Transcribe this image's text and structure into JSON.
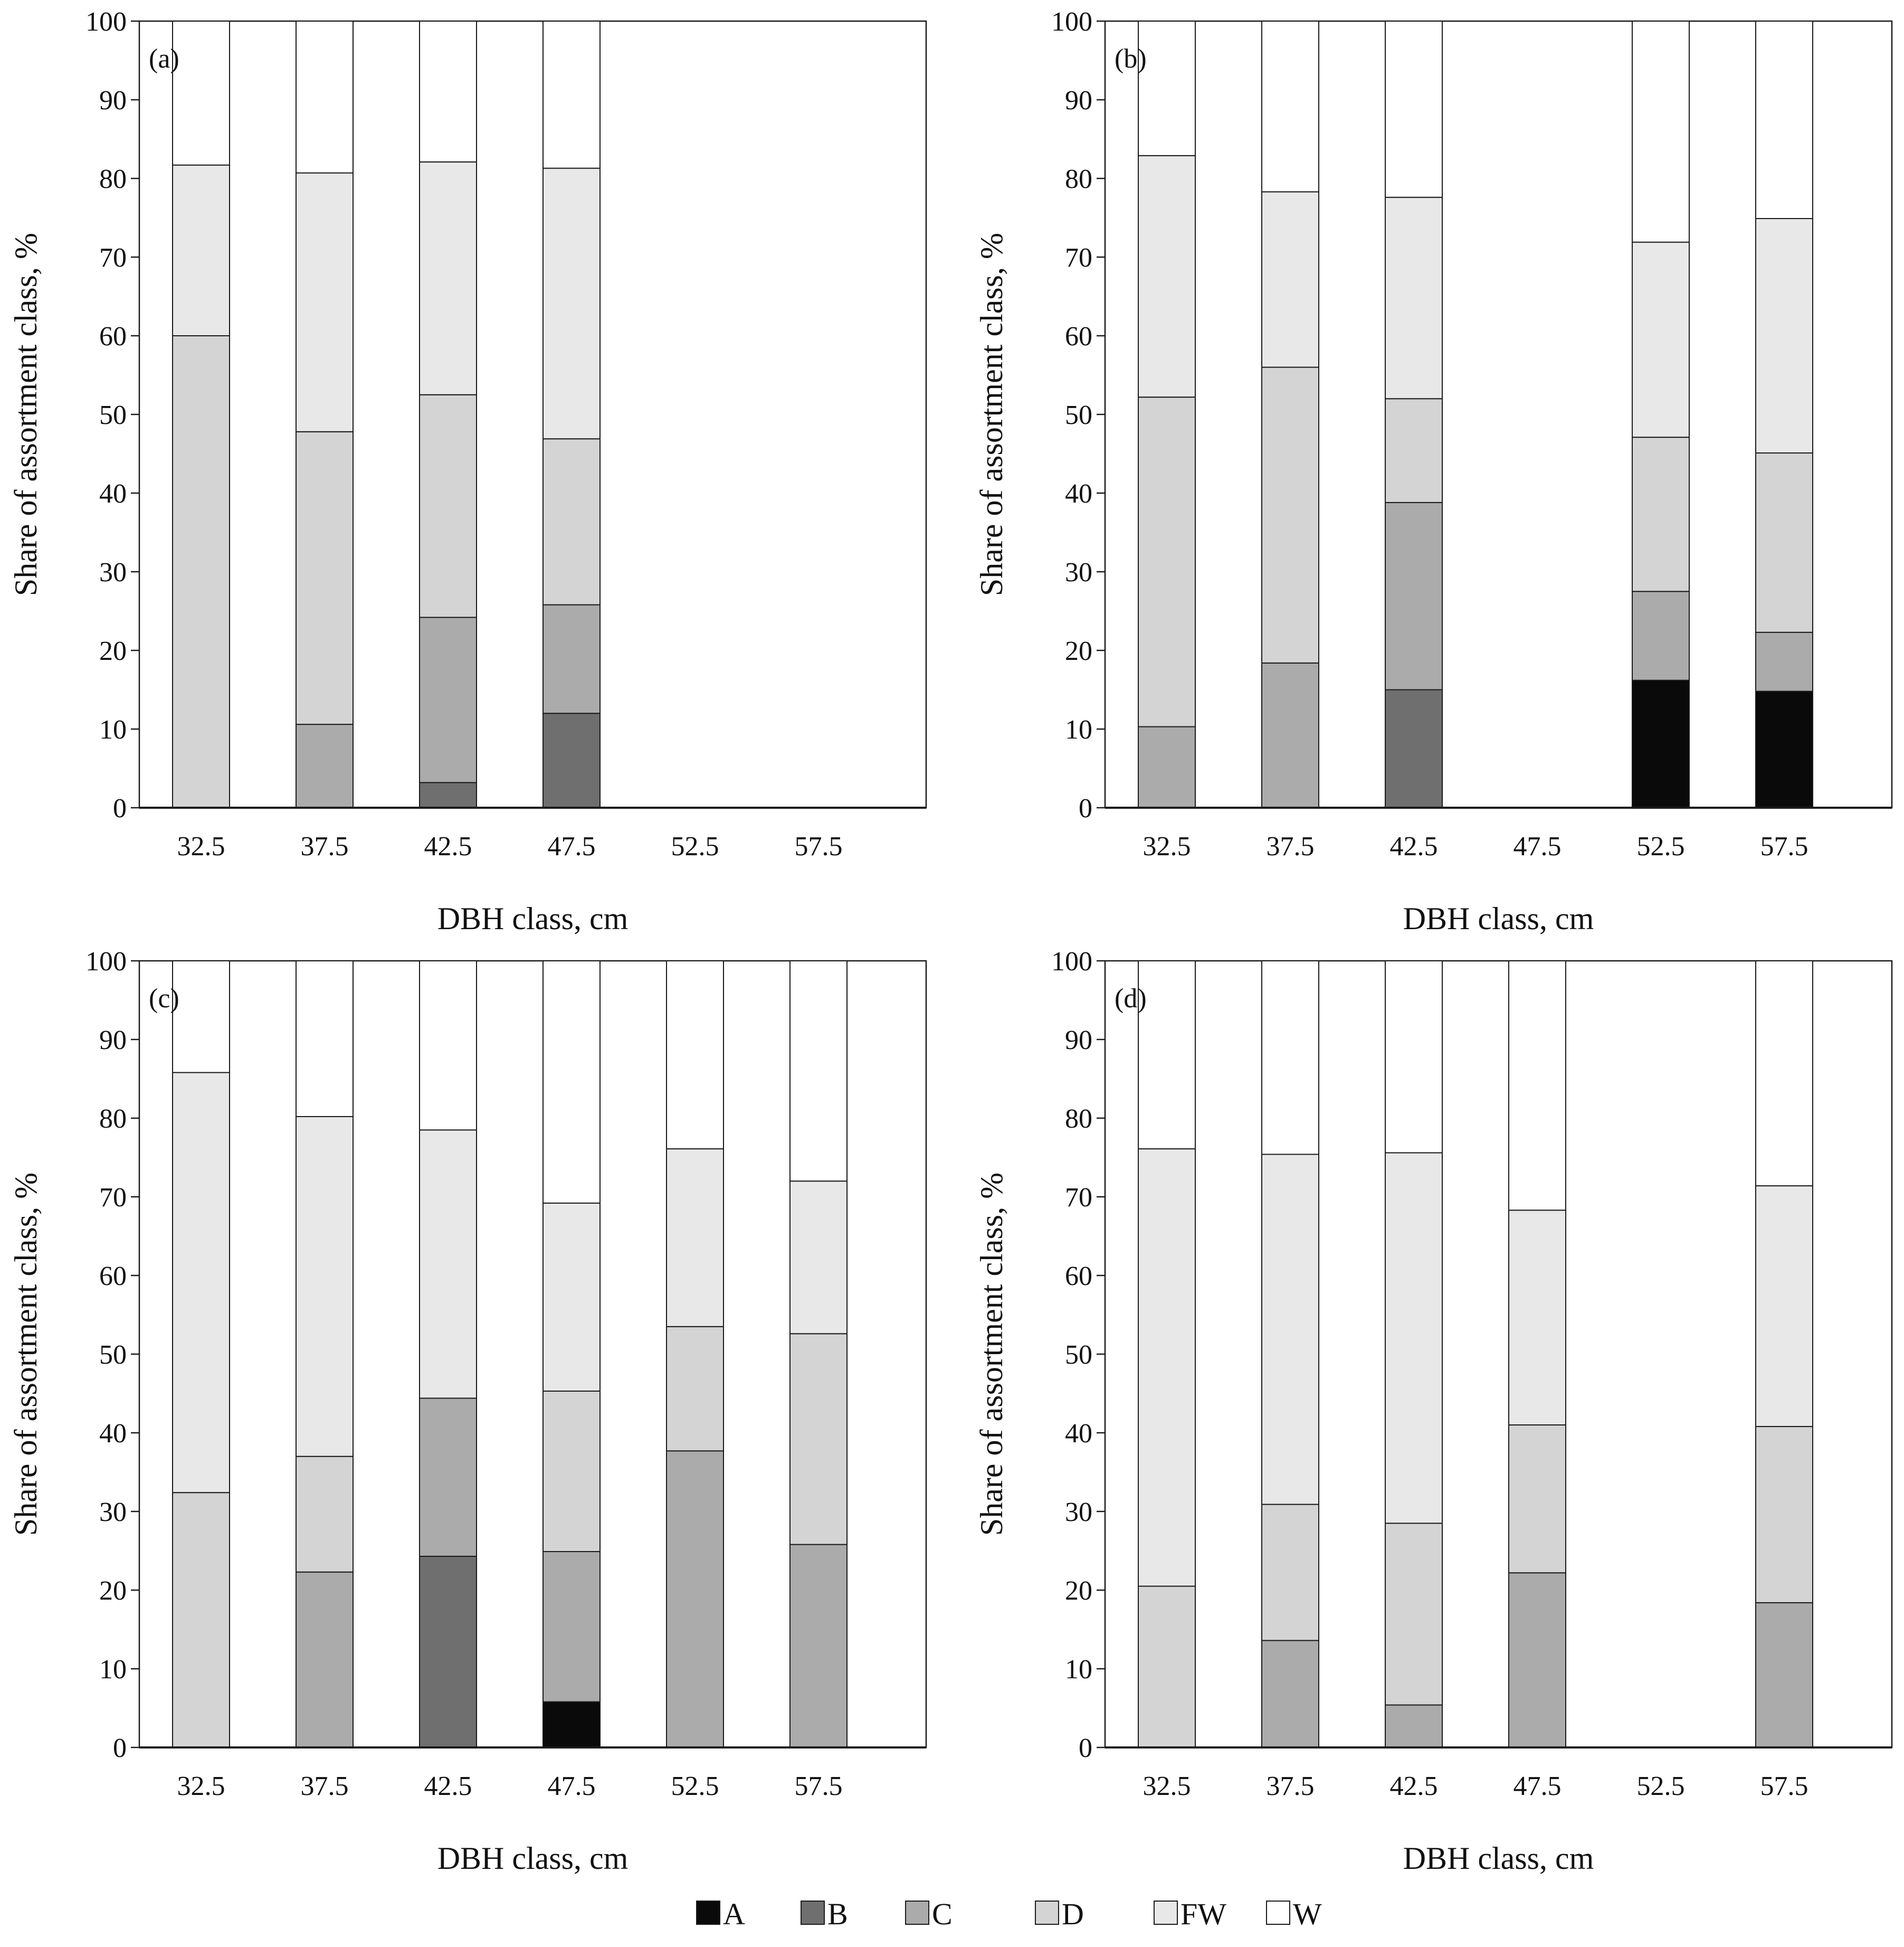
{
  "colors": {
    "A": "#0a0a0a",
    "B": "#6f6f6f",
    "C": "#ababab",
    "D": "#d4d4d4",
    "FW": "#e8e8e8",
    "W": "#ffffff",
    "stroke": "#1a1a1a"
  },
  "legend": [
    "A",
    "B",
    "C",
    "D",
    "FW",
    "W"
  ],
  "chart_data": [
    {
      "type": "bar",
      "stacked": true,
      "panel_label": "(a)",
      "categories": [
        "32.5",
        "37.5",
        "42.5",
        "47.5",
        "52.5",
        "57.5"
      ],
      "xlabel": "DBH class, cm",
      "ylabel": "Share of assortment class, %",
      "ylim": [
        0,
        100
      ],
      "yticks": [
        "0",
        "10",
        "20",
        "30",
        "40",
        "50",
        "60",
        "70",
        "80",
        "90",
        "100"
      ],
      "series": [
        {
          "name": "A",
          "values": [
            0,
            0,
            0,
            0,
            0,
            0
          ]
        },
        {
          "name": "B",
          "values": [
            0,
            0,
            3.2,
            12,
            0,
            0
          ]
        },
        {
          "name": "C",
          "values": [
            0,
            10.6,
            21,
            13.8,
            0,
            0
          ]
        },
        {
          "name": "D",
          "values": [
            60,
            37.2,
            28.3,
            21.1,
            0,
            0
          ]
        },
        {
          "name": "FW",
          "values": [
            21.7,
            32.9,
            29.6,
            34.4,
            0,
            0
          ]
        },
        {
          "name": "W",
          "values": [
            18.3,
            19.3,
            17.9,
            18.7,
            0,
            0
          ]
        }
      ]
    },
    {
      "type": "bar",
      "stacked": true,
      "panel_label": "(b)",
      "categories": [
        "32.5",
        "37.5",
        "42.5",
        "47.5",
        "52.5",
        "57.5"
      ],
      "xlabel": "DBH class, cm",
      "ylabel": "Share of assortment class, %",
      "ylim": [
        0,
        100
      ],
      "yticks": [
        "0",
        "10",
        "20",
        "30",
        "40",
        "50",
        "60",
        "70",
        "80",
        "90",
        "100"
      ],
      "series": [
        {
          "name": "A",
          "values": [
            0,
            0,
            0,
            0,
            16.2,
            14.8
          ]
        },
        {
          "name": "B",
          "values": [
            0,
            0,
            15,
            0,
            0,
            0
          ]
        },
        {
          "name": "C",
          "values": [
            10.3,
            18.4,
            23.8,
            0,
            11.3,
            7.5
          ]
        },
        {
          "name": "D",
          "values": [
            41.9,
            37.6,
            13.2,
            0,
            19.6,
            22.8
          ]
        },
        {
          "name": "FW",
          "values": [
            30.7,
            22.3,
            25.6,
            0,
            24.8,
            29.8
          ]
        },
        {
          "name": "W",
          "values": [
            17.1,
            21.7,
            22.4,
            0,
            28.1,
            25.1
          ]
        }
      ]
    },
    {
      "type": "bar",
      "stacked": true,
      "panel_label": "(c)",
      "categories": [
        "32.5",
        "37.5",
        "42.5",
        "47.5",
        "52.5",
        "57.5"
      ],
      "xlabel": "DBH class, cm",
      "ylabel": "Share of assortment class, %",
      "ylim": [
        0,
        100
      ],
      "yticks": [
        "0",
        "10",
        "20",
        "30",
        "40",
        "50",
        "60",
        "70",
        "80",
        "90",
        "100"
      ],
      "series": [
        {
          "name": "A",
          "values": [
            0,
            0,
            0,
            5.8,
            0,
            0
          ]
        },
        {
          "name": "B",
          "values": [
            0,
            0,
            24.3,
            0,
            0,
            0
          ]
        },
        {
          "name": "C",
          "values": [
            0,
            22.3,
            20.1,
            19.1,
            37.7,
            25.8
          ]
        },
        {
          "name": "D",
          "values": [
            32.4,
            14.7,
            0,
            20.4,
            15.8,
            26.8
          ]
        },
        {
          "name": "FW",
          "values": [
            53.4,
            43.2,
            34.1,
            23.9,
            22.6,
            19.4
          ]
        },
        {
          "name": "W",
          "values": [
            14.2,
            19.8,
            21.5,
            30.8,
            23.9,
            28
          ]
        }
      ]
    },
    {
      "type": "bar",
      "stacked": true,
      "panel_label": "(d)",
      "categories": [
        "32.5",
        "37.5",
        "42.5",
        "47.5",
        "52.5",
        "57.5"
      ],
      "xlabel": "DBH class, cm",
      "ylabel": "Share of assortment class, %",
      "ylim": [
        0,
        100
      ],
      "yticks": [
        "0",
        "10",
        "20",
        "30",
        "40",
        "50",
        "60",
        "70",
        "80",
        "90",
        "100"
      ],
      "series": [
        {
          "name": "A",
          "values": [
            0,
            0,
            0,
            0,
            0,
            0
          ]
        },
        {
          "name": "B",
          "values": [
            0,
            0,
            0,
            0,
            0,
            0
          ]
        },
        {
          "name": "C",
          "values": [
            0,
            13.6,
            5.4,
            22.2,
            0,
            18.4
          ]
        },
        {
          "name": "D",
          "values": [
            20.5,
            17.3,
            23.1,
            18.8,
            0,
            22.4
          ]
        },
        {
          "name": "FW",
          "values": [
            55.6,
            44.5,
            47.1,
            27.3,
            0,
            30.6
          ]
        },
        {
          "name": "W",
          "values": [
            23.9,
            24.6,
            24.4,
            31.7,
            0,
            28.6
          ]
        }
      ]
    }
  ]
}
